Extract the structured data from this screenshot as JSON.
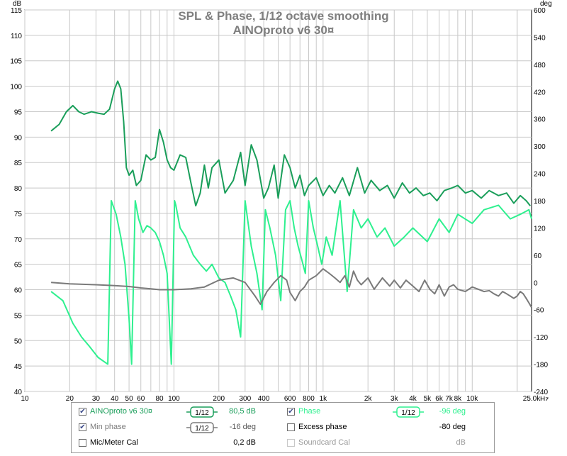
{
  "chart_data": {
    "type": "line",
    "title": "SPL & Phase, 1/12 octave smoothing",
    "subtitle": "AINOproto v6 30¤",
    "xlabel_unit": "Hz",
    "left_unit": "dB",
    "right_unit": "deg",
    "xscale": "log",
    "xlim": [
      10,
      25000
    ],
    "ylim_left": [
      40,
      115
    ],
    "ylim_right": [
      -240,
      600
    ],
    "grid": true,
    "x_ticks": [
      {
        "v": 10,
        "label": "10"
      },
      {
        "v": 20,
        "label": "20"
      },
      {
        "v": 30,
        "label": "30"
      },
      {
        "v": 40,
        "label": "40"
      },
      {
        "v": 50,
        "label": "50"
      },
      {
        "v": 60,
        "label": "60"
      },
      {
        "v": 80,
        "label": "80"
      },
      {
        "v": 100,
        "label": "100"
      },
      {
        "v": 200,
        "label": "200"
      },
      {
        "v": 300,
        "label": "300"
      },
      {
        "v": 400,
        "label": "400"
      },
      {
        "v": 600,
        "label": "600"
      },
      {
        "v": 800,
        "label": "800"
      },
      {
        "v": 1000,
        "label": "1k"
      },
      {
        "v": 2000,
        "label": "2k"
      },
      {
        "v": 3000,
        "label": "3k"
      },
      {
        "v": 4000,
        "label": "4k"
      },
      {
        "v": 5000,
        "label": "5k"
      },
      {
        "v": 6000,
        "label": "6k"
      },
      {
        "v": 7000,
        "label": "7k"
      },
      {
        "v": 8000,
        "label": "8k"
      },
      {
        "v": 10000,
        "label": "10k"
      },
      {
        "v": 25000,
        "label": "25,0k"
      }
    ],
    "y_left_ticks": [
      40,
      45,
      50,
      55,
      60,
      65,
      70,
      75,
      80,
      85,
      90,
      95,
      100,
      105,
      110,
      115
    ],
    "y_right_ticks": [
      -240,
      -180,
      -120,
      -60,
      0,
      60,
      120,
      180,
      240,
      300,
      360,
      420,
      480,
      540,
      600
    ],
    "series": [
      {
        "name": "AINOproto v6 30¤",
        "axis": "left",
        "color": "#1a9e5a",
        "x": [
          15,
          17,
          19,
          21,
          23,
          25,
          28,
          31,
          34,
          37,
          40,
          42,
          44,
          46,
          48,
          50,
          53,
          56,
          60,
          65,
          70,
          75,
          80,
          85,
          90,
          95,
          100,
          110,
          120,
          130,
          140,
          150,
          160,
          170,
          180,
          200,
          220,
          250,
          280,
          300,
          330,
          360,
          400,
          430,
          470,
          500,
          550,
          600,
          650,
          700,
          750,
          800,
          900,
          1000,
          1100,
          1200,
          1350,
          1500,
          1700,
          1900,
          2100,
          2400,
          2700,
          3000,
          3400,
          3800,
          4200,
          4700,
          5200,
          5800,
          6500,
          7300,
          8000,
          9000,
          10000,
          11500,
          13000,
          15000,
          17000,
          19000,
          21000,
          23000,
          24500
        ],
        "y": [
          91.2,
          92.5,
          95.0,
          96.2,
          95.0,
          94.5,
          95.0,
          94.7,
          94.5,
          95.5,
          99.5,
          101.0,
          99.5,
          93.0,
          84.0,
          82.5,
          83.5,
          80.5,
          81.5,
          86.5,
          85.5,
          86.0,
          91.5,
          89.0,
          85.5,
          84.0,
          83.5,
          86.5,
          86.0,
          81.0,
          76.5,
          79.0,
          84.5,
          80.0,
          84.0,
          85.5,
          79.0,
          81.5,
          87.0,
          80.5,
          88.5,
          85.5,
          78.0,
          80.0,
          84.5,
          78.0,
          86.5,
          84.0,
          80.0,
          82.5,
          78.5,
          80.5,
          82.0,
          78.5,
          80.5,
          79.0,
          82.0,
          78.5,
          84.0,
          79.0,
          81.5,
          79.5,
          80.5,
          78.0,
          81.0,
          79.0,
          80.0,
          78.5,
          79.0,
          77.5,
          79.5,
          80.0,
          80.5,
          79.0,
          79.5,
          78.0,
          79.5,
          78.5,
          79.0,
          77.0,
          78.5,
          77.5,
          76.5
        ]
      },
      {
        "name": "Phase",
        "axis": "right",
        "color": "#2ef08f",
        "x": [
          15,
          18,
          21,
          24,
          27,
          31,
          36,
          38,
          41,
          44,
          47,
          50,
          52,
          55,
          58,
          62,
          66,
          70,
          75,
          80,
          85,
          90,
          96,
          101,
          103,
          110,
          120,
          135,
          150,
          165,
          180,
          200,
          220,
          240,
          260,
          280,
          300,
          330,
          360,
          390,
          410,
          440,
          480,
          520,
          560,
          600,
          640,
          680,
          720,
          760,
          800,
          860,
          920,
          980,
          1050,
          1150,
          1300,
          1450,
          1600,
          1800,
          2000,
          2300,
          2600,
          3000,
          3500,
          4000,
          5000,
          6000,
          7000,
          8000,
          10000,
          12000,
          15000,
          18000,
          21000,
          24000,
          25000
        ],
        "y": [
          -20,
          -40,
          -90,
          -120,
          -140,
          -165,
          -180,
          180,
          150,
          100,
          40,
          -80,
          -180,
          180,
          140,
          110,
          125,
          120,
          110,
          90,
          60,
          20,
          -180,
          180,
          170,
          120,
          100,
          60,
          40,
          25,
          40,
          10,
          0,
          -30,
          -60,
          -120,
          180,
          80,
          20,
          -60,
          160,
          120,
          60,
          -40,
          160,
          180,
          120,
          80,
          50,
          20,
          180,
          120,
          80,
          40,
          100,
          60,
          180,
          -20,
          160,
          120,
          140,
          100,
          120,
          80,
          100,
          120,
          90,
          140,
          110,
          150,
          130,
          160,
          170,
          140,
          150,
          160,
          140
        ]
      },
      {
        "name": "Min phase",
        "axis": "right",
        "color": "#7a7a7a",
        "x": [
          15,
          20,
          30,
          40,
          50,
          60,
          70,
          80,
          100,
          130,
          160,
          200,
          250,
          300,
          350,
          380,
          420,
          470,
          520,
          570,
          600,
          650,
          700,
          750,
          800,
          900,
          1000,
          1100,
          1200,
          1300,
          1400,
          1500,
          1600,
          1700,
          1800,
          2000,
          2200,
          2500,
          2800,
          3000,
          3300,
          3600,
          4000,
          4400,
          4800,
          5200,
          5600,
          6000,
          6500,
          7000,
          7500,
          8000,
          9000,
          10000,
          11000,
          12000,
          13000,
          14000,
          15000,
          16000,
          17000,
          18000,
          19000,
          20000,
          21000,
          22000,
          23000,
          24000,
          25000
        ],
        "y": [
          0,
          -3,
          -5,
          -7,
          -9,
          -12,
          -14,
          -16,
          -16,
          -14,
          -10,
          5,
          10,
          0,
          -30,
          -48,
          -20,
          0,
          15,
          5,
          -22,
          -40,
          -20,
          -10,
          5,
          15,
          30,
          20,
          10,
          0,
          15,
          -10,
          25,
          5,
          -5,
          10,
          -15,
          10,
          -8,
          5,
          -12,
          5,
          -8,
          -20,
          5,
          -15,
          -25,
          -5,
          -30,
          -10,
          -5,
          -15,
          -20,
          -10,
          -15,
          -20,
          -18,
          -25,
          -30,
          -20,
          -25,
          -30,
          -35,
          -30,
          -20,
          -25,
          -35,
          -45,
          -55
        ]
      }
    ]
  },
  "legend": {
    "rows": [
      {
        "left": {
          "checked": true,
          "disabled": false,
          "label": "AINOproto v6 30¤",
          "color": "#1a9e5a",
          "smoothing": "1/12",
          "value": "80,5 dB"
        },
        "right": {
          "checked": true,
          "disabled": false,
          "label": "Phase",
          "color": "#2ef08f",
          "smoothing": "1/12",
          "value": "-96 deg"
        }
      },
      {
        "left": {
          "checked": true,
          "disabled": false,
          "label": "Min phase",
          "color": "#7a7a7a",
          "smoothing": "1/12",
          "value": "-16 deg"
        },
        "right": {
          "checked": false,
          "disabled": false,
          "label": "Excess phase",
          "color": "#000000",
          "smoothing": "",
          "value": "-80 deg"
        }
      },
      {
        "left": {
          "checked": false,
          "disabled": false,
          "label": "Mic/Meter Cal",
          "color": "#000000",
          "smoothing": "",
          "value": "0,2 dB"
        },
        "right": {
          "checked": false,
          "disabled": true,
          "label": "Soundcard Cal",
          "color": "#9a9a9a",
          "smoothing": "",
          "value": "dB"
        }
      }
    ]
  }
}
